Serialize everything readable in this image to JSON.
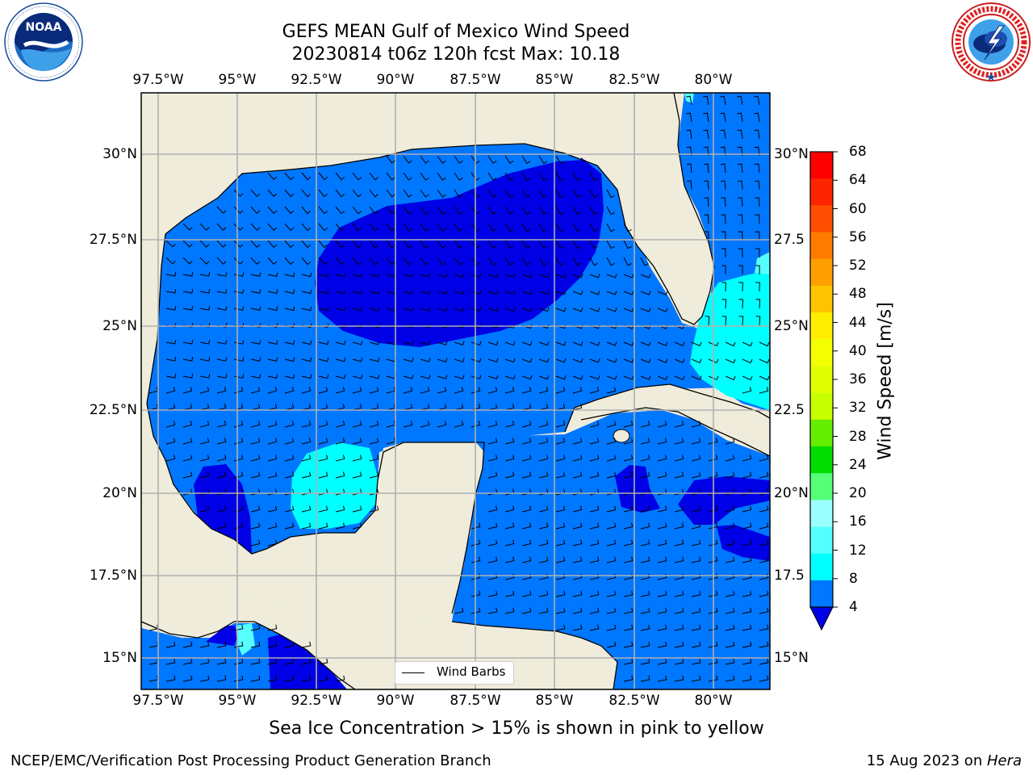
{
  "title": {
    "line1": "GEFS MEAN Gulf of Mexico Wind Speed",
    "line2": "20230814 t06z 120h fcst   Max: 10.18"
  },
  "logos": {
    "left": {
      "name": "noaa-logo",
      "text": "NOAA",
      "ring_text": "NATIONAL OCEANIC AND ATMOSPHERIC ADMINISTRATION · U.S. DEPARTMENT OF COMMERCE"
    },
    "right": {
      "name": "nws-logo",
      "ring_text": "NATIONAL WEATHER SERVICE"
    }
  },
  "map": {
    "lon_ticks": [
      "97.5°W",
      "95°W",
      "92.5°W",
      "90°W",
      "87.5°W",
      "85°W",
      "82.5°W",
      "80°W"
    ],
    "lat_ticks_left": [
      "30°N",
      "27.5°N",
      "25°N",
      "22.5°N",
      "20°N",
      "17.5°N",
      "15°N"
    ],
    "lat_ticks_right": [
      "30°N",
      "27.5",
      "25°N",
      "22.5",
      "20°N",
      "17.5",
      "15°N"
    ],
    "legend_label": "Wind Barbs",
    "colors": {
      "land": "#efecdc",
      "ocean_4_8": "#0077ff",
      "ocean_0_4": "#0000e6",
      "ocean_8_12": "#00ffff",
      "ocean_12_16": "#55ffff",
      "grid": "#b0b0b0",
      "frame": "#000000"
    }
  },
  "colorbar": {
    "label": "Wind Speed [m/s]",
    "ticks": [
      "68",
      "64",
      "60",
      "56",
      "52",
      "48",
      "44",
      "40",
      "36",
      "32",
      "28",
      "24",
      "20",
      "16",
      "12",
      "8",
      "4"
    ],
    "colors": [
      "#ff0000",
      "#ff2400",
      "#ff4e00",
      "#ff7b00",
      "#ffa000",
      "#ffc400",
      "#ffee00",
      "#f4ff00",
      "#e1ff00",
      "#c6ff00",
      "#66ee00",
      "#00dd00",
      "#55ff77",
      "#99ffff",
      "#55ffff",
      "#00ffff",
      "#0077ff"
    ],
    "extend_color": "#0000e6"
  },
  "footer": {
    "subtitle": "Sea Ice Concentration > 15% is shown in pink to yellow",
    "left": "NCEP/EMC/Verification Post Processing Product Generation Branch",
    "right_date": "15 Aug 2023 on ",
    "right_host": "Hera"
  }
}
